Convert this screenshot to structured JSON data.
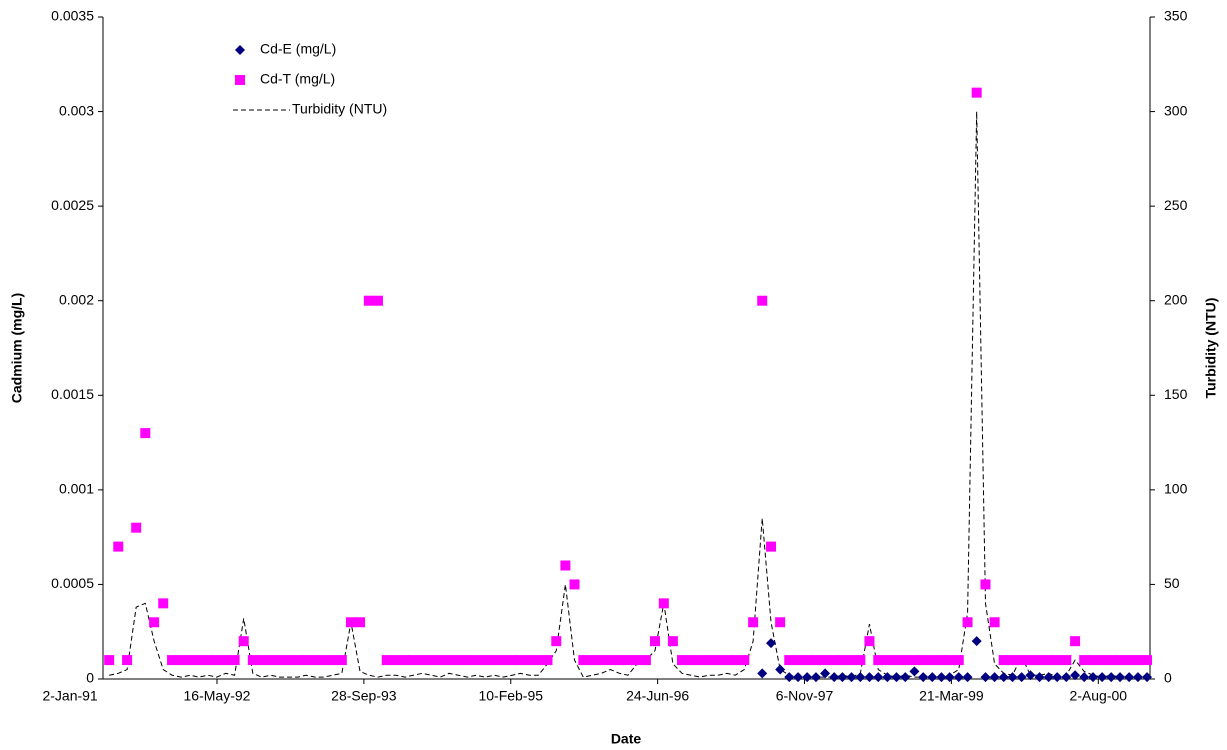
{
  "chart_data": {
    "type": "scatter-line",
    "x_label": "Date",
    "y_label": "Cadmium (mg/L)",
    "y2_label": "Turbidity (NTU)",
    "legend": "top-left",
    "xlim": [
      "1991-04-24",
      "2001-01-25"
    ],
    "xticks": [
      {
        "value": "1991-01-02",
        "label": "2-Jan-91"
      },
      {
        "value": "1992-05-16",
        "label": "16-May-92"
      },
      {
        "value": "1993-09-28",
        "label": "28-Sep-93"
      },
      {
        "value": "1995-02-10",
        "label": "10-Feb-95"
      },
      {
        "value": "1996-06-24",
        "label": "24-Jun-96"
      },
      {
        "value": "1997-11-06",
        "label": "6-Nov-97"
      },
      {
        "value": "1999-03-21",
        "label": "21-Mar-99"
      },
      {
        "value": "2000-08-02",
        "label": "2-Aug-00"
      }
    ],
    "ylim": [
      0,
      0.0035
    ],
    "yticks": [
      0,
      0.0005,
      0.001,
      0.0015,
      0.002,
      0.0025,
      0.003,
      0.0035
    ],
    "y2lim": [
      0,
      350
    ],
    "y2ticks": [
      0,
      50,
      100,
      150,
      200,
      250,
      300,
      350
    ],
    "x": [
      "1991-05-15",
      "1991-06-15",
      "1991-07-15",
      "1991-08-15",
      "1991-09-15",
      "1991-10-15",
      "1991-11-15",
      "1991-12-15",
      "1992-01-15",
      "1992-02-15",
      "1992-03-15",
      "1992-04-15",
      "1992-05-15",
      "1992-06-15",
      "1992-07-15",
      "1992-08-15",
      "1992-09-15",
      "1992-10-15",
      "1992-11-15",
      "1992-12-15",
      "1993-01-15",
      "1993-02-15",
      "1993-03-15",
      "1993-04-15",
      "1993-05-15",
      "1993-06-15",
      "1993-07-15",
      "1993-08-15",
      "1993-09-15",
      "1993-10-15",
      "1993-11-15",
      "1993-12-15",
      "1994-01-15",
      "1994-02-15",
      "1994-03-15",
      "1994-04-15",
      "1994-05-15",
      "1994-06-15",
      "1994-07-15",
      "1994-08-15",
      "1994-09-15",
      "1994-10-15",
      "1994-11-15",
      "1994-12-15",
      "1995-01-15",
      "1995-02-15",
      "1995-03-15",
      "1995-04-15",
      "1995-05-15",
      "1995-06-15",
      "1995-07-15",
      "1995-08-15",
      "1995-09-15",
      "1995-10-15",
      "1995-11-15",
      "1995-12-15",
      "1996-01-15",
      "1996-02-15",
      "1996-03-15",
      "1996-04-15",
      "1996-05-15",
      "1996-06-15",
      "1996-07-15",
      "1996-08-15",
      "1996-09-15",
      "1996-10-15",
      "1996-11-15",
      "1996-12-15",
      "1997-01-15",
      "1997-02-15",
      "1997-03-15",
      "1997-04-15",
      "1997-05-15",
      "1997-06-15",
      "1997-07-15",
      "1997-08-15",
      "1997-09-15",
      "1997-10-15",
      "1997-11-15",
      "1997-12-15",
      "1998-01-15",
      "1998-02-15",
      "1998-03-15",
      "1998-04-15",
      "1998-05-15",
      "1998-06-15",
      "1998-07-15",
      "1998-08-15",
      "1998-09-15",
      "1998-10-15",
      "1998-11-15",
      "1998-12-15",
      "1999-01-15",
      "1999-02-15",
      "1999-03-15",
      "1999-04-15",
      "1999-05-15",
      "1999-06-15",
      "1999-07-15",
      "1999-08-15",
      "1999-09-15",
      "1999-10-15",
      "1999-11-15",
      "1999-12-15",
      "2000-01-15",
      "2000-02-15",
      "2000-03-15",
      "2000-04-15",
      "2000-05-15",
      "2000-06-15",
      "2000-07-15",
      "2000-08-15",
      "2000-09-15",
      "2000-10-15",
      "2000-11-15",
      "2000-12-15",
      "2001-01-15"
    ],
    "series": [
      {
        "name": "Cd-E (mg/L)",
        "color": "#000080",
        "marker": "diamond",
        "values": [
          null,
          null,
          null,
          null,
          null,
          null,
          null,
          null,
          null,
          null,
          null,
          null,
          null,
          null,
          null,
          null,
          null,
          null,
          null,
          null,
          null,
          null,
          null,
          null,
          null,
          null,
          null,
          null,
          null,
          null,
          null,
          null,
          null,
          null,
          null,
          null,
          null,
          null,
          null,
          null,
          null,
          null,
          null,
          null,
          null,
          null,
          null,
          null,
          null,
          null,
          null,
          null,
          null,
          null,
          null,
          null,
          null,
          null,
          null,
          null,
          null,
          null,
          null,
          null,
          null,
          null,
          null,
          null,
          null,
          null,
          null,
          null,
          null,
          3e-05,
          0.00019,
          5e-05,
          1e-05,
          1e-05,
          1e-05,
          1e-05,
          3e-05,
          1e-05,
          1e-05,
          1e-05,
          1e-05,
          1e-05,
          1e-05,
          1e-05,
          1e-05,
          1e-05,
          4e-05,
          1e-05,
          1e-05,
          1e-05,
          1e-05,
          1e-05,
          1e-05,
          0.0002,
          1e-05,
          1e-05,
          1e-05,
          1e-05,
          1e-05,
          2e-05,
          1e-05,
          1e-05,
          1e-05,
          1e-05,
          2e-05,
          1e-05,
          1e-05,
          1e-05,
          1e-05,
          1e-05,
          1e-05,
          1e-05,
          1e-05
        ]
      },
      {
        "name": "Cd-T (mg/L)",
        "color": "#ff00ff",
        "marker": "square",
        "values": [
          0.0001,
          0.0007,
          0.0001,
          0.0008,
          0.0013,
          0.0003,
          0.0004,
          0.0001,
          0.0001,
          0.0001,
          0.0001,
          0.0001,
          0.0001,
          0.0001,
          0.0001,
          0.0002,
          0.0001,
          0.0001,
          0.0001,
          0.0001,
          0.0001,
          0.0001,
          0.0001,
          0.0001,
          0.0001,
          0.0001,
          0.0001,
          0.0003,
          0.0003,
          0.002,
          0.002,
          0.0001,
          0.0001,
          0.0001,
          0.0001,
          0.0001,
          0.0001,
          0.0001,
          0.0001,
          0.0001,
          0.0001,
          0.0001,
          0.0001,
          0.0001,
          0.0001,
          0.0001,
          0.0001,
          0.0001,
          0.0001,
          0.0001,
          0.0002,
          0.0006,
          0.0005,
          0.0001,
          0.0001,
          0.0001,
          0.0001,
          0.0001,
          0.0001,
          0.0001,
          0.0001,
          0.0002,
          0.0004,
          0.0002,
          0.0001,
          0.0001,
          0.0001,
          0.0001,
          0.0001,
          0.0001,
          0.0001,
          0.0001,
          0.0003,
          0.002,
          0.0007,
          0.0003,
          0.0001,
          0.0001,
          0.0001,
          0.0001,
          0.0001,
          0.0001,
          0.0001,
          0.0001,
          0.0001,
          0.0002,
          0.0001,
          0.0001,
          0.0001,
          0.0001,
          0.0001,
          0.0001,
          0.0001,
          0.0001,
          0.0001,
          0.0001,
          0.0003,
          0.0031,
          0.0005,
          0.0003,
          0.0001,
          0.0001,
          0.0001,
          0.0001,
          0.0001,
          0.0001,
          0.0001,
          0.0001,
          0.0002,
          0.0001,
          0.0001,
          0.0001,
          0.0001,
          0.0001,
          0.0001,
          0.0001,
          0.0001
        ]
      },
      {
        "name": "Turbidity (NTU)",
        "color": "#000000",
        "marker": "line",
        "line_style": "dashed",
        "axis": "y2",
        "values": [
          2,
          3,
          5,
          38,
          40,
          20,
          5,
          2,
          1,
          2,
          1,
          2,
          1,
          3,
          2,
          32,
          3,
          1,
          2,
          1,
          1,
          1,
          2,
          1,
          1,
          2,
          3,
          30,
          4,
          2,
          1,
          2,
          2,
          1,
          2,
          3,
          2,
          1,
          3,
          2,
          1,
          2,
          1,
          2,
          1,
          2,
          3,
          2,
          2,
          8,
          15,
          50,
          10,
          1,
          2,
          3,
          5,
          3,
          2,
          8,
          10,
          15,
          40,
          8,
          3,
          2,
          1,
          2,
          2,
          3,
          2,
          5,
          20,
          85,
          30,
          5,
          2,
          1,
          1,
          1,
          1,
          1,
          2,
          1,
          3,
          29,
          5,
          2,
          1,
          2,
          1,
          1,
          2,
          1,
          2,
          5,
          35,
          300,
          40,
          8,
          3,
          2,
          12,
          2,
          2,
          3,
          1,
          2,
          10,
          4,
          2,
          1,
          2,
          1,
          2,
          1,
          1
        ]
      }
    ]
  }
}
